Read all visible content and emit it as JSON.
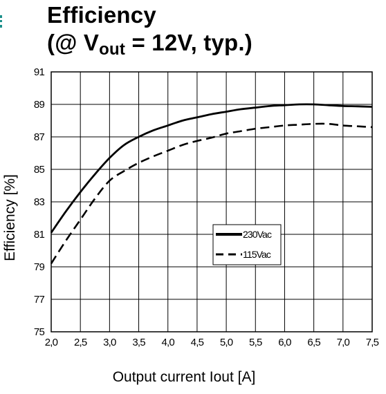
{
  "header": {
    "title_line1": "Efficiency",
    "title_line2_prefix": "(@ V",
    "title_line2_sub": "out",
    "title_line2_suffix": " = 12V, typ.)"
  },
  "chart_data": {
    "type": "line",
    "title": "Efficiency (@ Vout = 12V, typ.)",
    "xlabel": "Output current Iout [A]",
    "ylabel": "Efficiency [%]",
    "xlim": [
      2.0,
      7.5
    ],
    "ylim": [
      75,
      91
    ],
    "x_ticks": [
      "2,0",
      "2,5",
      "3,0",
      "3,5",
      "4,0",
      "4,5",
      "5,0",
      "5,5",
      "6,0",
      "6,5",
      "7,0",
      "7,5"
    ],
    "y_ticks": [
      "75",
      "77",
      "79",
      "81",
      "83",
      "85",
      "87",
      "89",
      "91"
    ],
    "grid": true,
    "legend_position": "center-right",
    "series": [
      {
        "name": "230Vac",
        "style": "solid",
        "color": "#000000",
        "x": [
          2.0,
          2.25,
          2.5,
          2.75,
          3.0,
          3.25,
          3.5,
          3.75,
          4.0,
          4.25,
          4.5,
          4.75,
          5.0,
          5.25,
          5.5,
          5.75,
          6.0,
          6.25,
          6.5,
          6.75,
          7.0,
          7.25,
          7.5
        ],
        "y": [
          81.1,
          82.4,
          83.6,
          84.7,
          85.7,
          86.5,
          87.0,
          87.4,
          87.7,
          88.0,
          88.2,
          88.4,
          88.55,
          88.7,
          88.8,
          88.9,
          88.95,
          89.0,
          89.0,
          88.95,
          88.9,
          88.88,
          88.85
        ]
      },
      {
        "name": "115Vac",
        "style": "dashed",
        "color": "#000000",
        "x": [
          2.0,
          2.25,
          2.5,
          2.75,
          3.0,
          3.25,
          3.5,
          3.75,
          4.0,
          4.25,
          4.5,
          4.75,
          5.0,
          5.25,
          5.5,
          5.75,
          6.0,
          6.25,
          6.5,
          6.75,
          7.0,
          7.25,
          7.5
        ],
        "y": [
          79.2,
          80.6,
          81.9,
          83.2,
          84.3,
          84.9,
          85.4,
          85.8,
          86.15,
          86.5,
          86.75,
          86.95,
          87.2,
          87.35,
          87.5,
          87.6,
          87.7,
          87.75,
          87.8,
          87.8,
          87.7,
          87.65,
          87.6
        ]
      }
    ]
  }
}
